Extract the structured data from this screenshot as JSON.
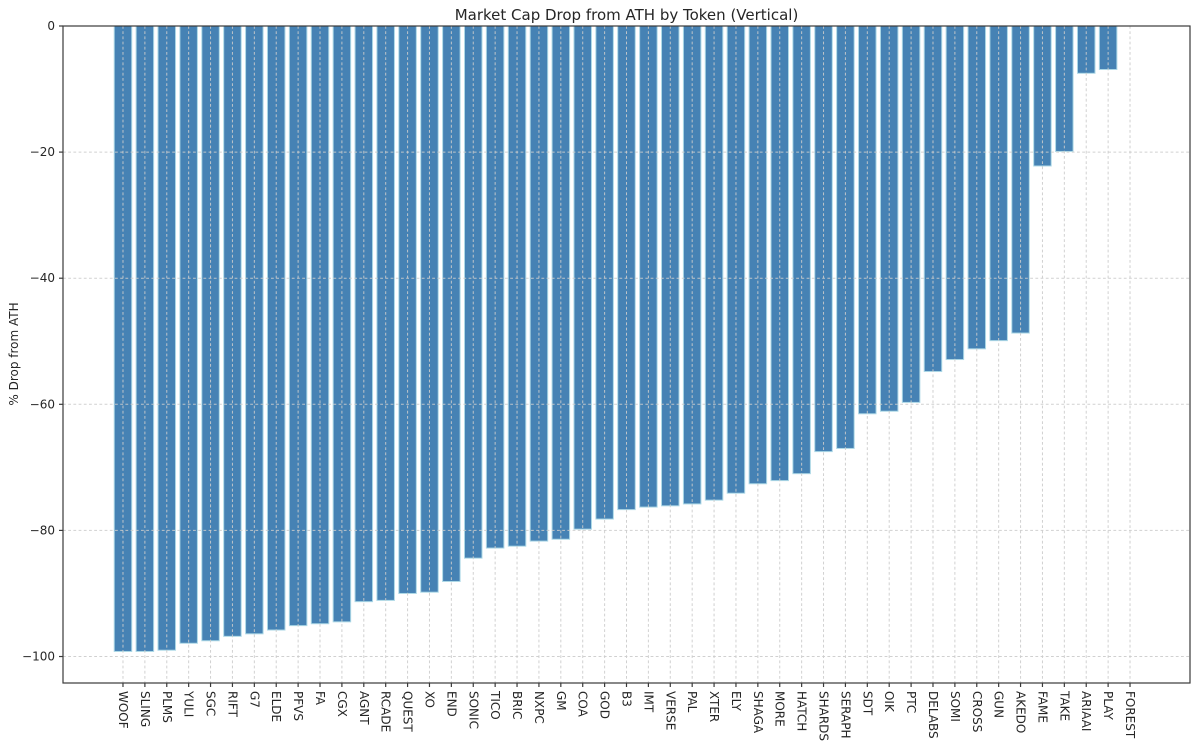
{
  "chart_data": {
    "type": "bar",
    "title": "Market Cap Drop from ATH by Token (Vertical)",
    "xlabel": "",
    "ylabel": "% Drop from ATH",
    "categories": [
      "WOOF",
      "SLING",
      "PLMS",
      "YULI",
      "SGC",
      "RIFT",
      "G7",
      "ELDE",
      "PFVS",
      "FA",
      "CGX",
      "AGNT",
      "RCADE",
      "QUEST",
      "XO",
      "END",
      "SONIC",
      "TICO",
      "BRIC",
      "NXPC",
      "GM",
      "COA",
      "GOD",
      "B3",
      "IMT",
      "VERSE",
      "PAL",
      "XTER",
      "ELY",
      "SHAGA",
      "MORE",
      "HATCH",
      "SHARDS",
      "SERAPH",
      "SDT",
      "OIK",
      "PTC",
      "DELABS",
      "SOMI",
      "CROSS",
      "GUN",
      "AKEDO",
      "FAME",
      "TAKE",
      "ARIAAI",
      "PLAY",
      "FOREST"
    ],
    "values": [
      -99.2,
      -99.2,
      -99.0,
      -97.9,
      -97.5,
      -96.8,
      -96.4,
      -95.8,
      -95.1,
      -94.8,
      -94.5,
      -91.3,
      -91.1,
      -90.0,
      -89.8,
      -88.1,
      -84.4,
      -82.8,
      -82.5,
      -81.7,
      -81.4,
      -79.8,
      -78.2,
      -76.7,
      -76.3,
      -76.1,
      -75.8,
      -75.2,
      -74.1,
      -72.6,
      -72.1,
      -71.0,
      -67.5,
      -67.0,
      -61.5,
      -61.1,
      -59.7,
      -54.8,
      -52.9,
      -51.2,
      -49.9,
      -48.7,
      -22.2,
      -19.9,
      -7.5,
      -6.9,
      0.0
    ],
    "yticks": [
      0,
      -20,
      -40,
      -60,
      -80,
      -100
    ],
    "ylim": [
      -104.2,
      0
    ],
    "grid": true,
    "grid_style": "dashed",
    "x_tick_rotation": 90,
    "legend": "none",
    "bar_color": "#4682b4",
    "bar_edge_color": "#add8e6",
    "grid_color": "#cccccc",
    "spine_color": "#3a3a3a",
    "text_color": "#262626"
  }
}
